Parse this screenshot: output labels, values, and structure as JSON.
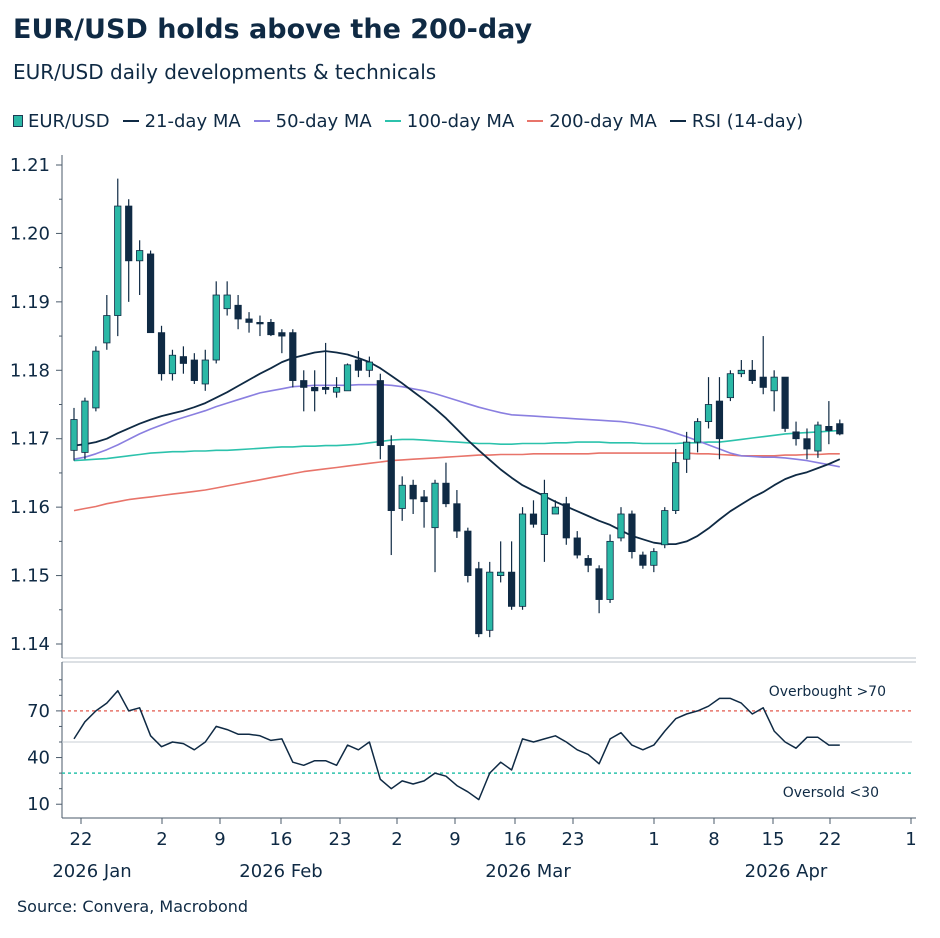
{
  "title": "EUR/USD holds above the 200-day",
  "subtitle": "EUR/USD daily developments & technicals",
  "source": "Source: Convera, Macrobond",
  "legend": [
    {
      "label": "EUR/USD",
      "kind": "candle",
      "color": "#2bb8a6"
    },
    {
      "label": "21-day MA",
      "kind": "line",
      "color": "#0f2a44"
    },
    {
      "label": "50-day MA",
      "kind": "line",
      "color": "#8a7fe0"
    },
    {
      "label": "100-day MA",
      "kind": "line",
      "color": "#2cc2ac"
    },
    {
      "label": "200-day MA",
      "kind": "line",
      "color": "#e8746a"
    },
    {
      "label": "RSI (14-day)",
      "kind": "line",
      "color": "#0f2a44"
    }
  ],
  "chart_data": {
    "type": "candlestick",
    "x_ticks": [
      "22",
      "2",
      "9",
      "16",
      "23",
      "2",
      "9",
      "16",
      "23",
      "1",
      "8",
      "15",
      "22",
      "1"
    ],
    "x_month_labels": [
      "2026 Jan",
      "2026 Feb",
      "2026 Mar",
      "2026 Apr"
    ],
    "price_axis": {
      "ticks": [
        "1.21",
        "1.20",
        "1.19",
        "1.18",
        "1.17",
        "1.16",
        "1.15",
        "1.14"
      ],
      "ylim": [
        1.14,
        1.21
      ]
    },
    "rsi_axis": {
      "ticks": [
        "70",
        "40",
        "10"
      ],
      "ylim": [
        5,
        95
      ]
    },
    "rsi_reference": {
      "overbought": 70,
      "oversold": 30,
      "overbought_label": "Overbought >70",
      "oversold_label": "Oversold <30"
    },
    "candles": [
      {
        "o": 1.1683,
        "h": 1.1745,
        "l": 1.1668,
        "c": 1.1728
      },
      {
        "o": 1.168,
        "h": 1.176,
        "l": 1.167,
        "c": 1.1755
      },
      {
        "o": 1.1745,
        "h": 1.1835,
        "l": 1.174,
        "c": 1.1828
      },
      {
        "o": 1.184,
        "h": 1.191,
        "l": 1.183,
        "c": 1.188
      },
      {
        "o": 1.188,
        "h": 1.208,
        "l": 1.185,
        "c": 1.204
      },
      {
        "o": 1.204,
        "h": 1.205,
        "l": 1.19,
        "c": 1.196
      },
      {
        "o": 1.196,
        "h": 1.199,
        "l": 1.191,
        "c": 1.1975
      },
      {
        "o": 1.197,
        "h": 1.1975,
        "l": 1.1855,
        "c": 1.1855
      },
      {
        "o": 1.1855,
        "h": 1.1865,
        "l": 1.1785,
        "c": 1.1795
      },
      {
        "o": 1.1795,
        "h": 1.183,
        "l": 1.1785,
        "c": 1.1822
      },
      {
        "o": 1.182,
        "h": 1.1835,
        "l": 1.1795,
        "c": 1.181
      },
      {
        "o": 1.1815,
        "h": 1.1825,
        "l": 1.178,
        "c": 1.1785
      },
      {
        "o": 1.178,
        "h": 1.183,
        "l": 1.177,
        "c": 1.1815
      },
      {
        "o": 1.1815,
        "h": 1.193,
        "l": 1.181,
        "c": 1.191
      },
      {
        "o": 1.189,
        "h": 1.193,
        "l": 1.188,
        "c": 1.191
      },
      {
        "o": 1.1895,
        "h": 1.191,
        "l": 1.186,
        "c": 1.1875
      },
      {
        "o": 1.1875,
        "h": 1.1885,
        "l": 1.1855,
        "c": 1.187
      },
      {
        "o": 1.187,
        "h": 1.188,
        "l": 1.185,
        "c": 1.1868
      },
      {
        "o": 1.187,
        "h": 1.1875,
        "l": 1.185,
        "c": 1.1852
      },
      {
        "o": 1.1855,
        "h": 1.186,
        "l": 1.1825,
        "c": 1.185
      },
      {
        "o": 1.1855,
        "h": 1.186,
        "l": 1.1775,
        "c": 1.1785
      },
      {
        "o": 1.1785,
        "h": 1.18,
        "l": 1.174,
        "c": 1.1775
      },
      {
        "o": 1.1775,
        "h": 1.18,
        "l": 1.174,
        "c": 1.177
      },
      {
        "o": 1.1775,
        "h": 1.184,
        "l": 1.1765,
        "c": 1.1772
      },
      {
        "o": 1.1768,
        "h": 1.179,
        "l": 1.176,
        "c": 1.1775
      },
      {
        "o": 1.177,
        "h": 1.181,
        "l": 1.177,
        "c": 1.1808
      },
      {
        "o": 1.1815,
        "h": 1.1828,
        "l": 1.179,
        "c": 1.18
      },
      {
        "o": 1.18,
        "h": 1.182,
        "l": 1.179,
        "c": 1.1812
      },
      {
        "o": 1.1785,
        "h": 1.1795,
        "l": 1.167,
        "c": 1.169
      },
      {
        "o": 1.169,
        "h": 1.1705,
        "l": 1.153,
        "c": 1.1595
      },
      {
        "o": 1.1598,
        "h": 1.1645,
        "l": 1.158,
        "c": 1.1632
      },
      {
        "o": 1.1632,
        "h": 1.164,
        "l": 1.159,
        "c": 1.1612
      },
      {
        "o": 1.1615,
        "h": 1.1625,
        "l": 1.157,
        "c": 1.1608
      },
      {
        "o": 1.157,
        "h": 1.164,
        "l": 1.1505,
        "c": 1.1635
      },
      {
        "o": 1.1635,
        "h": 1.1665,
        "l": 1.16,
        "c": 1.1605
      },
      {
        "o": 1.1605,
        "h": 1.1625,
        "l": 1.1555,
        "c": 1.1565
      },
      {
        "o": 1.1565,
        "h": 1.157,
        "l": 1.149,
        "c": 1.15
      },
      {
        "o": 1.151,
        "h": 1.152,
        "l": 1.141,
        "c": 1.1415
      },
      {
        "o": 1.142,
        "h": 1.152,
        "l": 1.141,
        "c": 1.1505
      },
      {
        "o": 1.15,
        "h": 1.155,
        "l": 1.149,
        "c": 1.1505
      },
      {
        "o": 1.1505,
        "h": 1.155,
        "l": 1.145,
        "c": 1.1455
      },
      {
        "o": 1.1455,
        "h": 1.16,
        "l": 1.145,
        "c": 1.159
      },
      {
        "o": 1.159,
        "h": 1.161,
        "l": 1.157,
        "c": 1.1575
      },
      {
        "o": 1.156,
        "h": 1.164,
        "l": 1.152,
        "c": 1.162
      },
      {
        "o": 1.159,
        "h": 1.161,
        "l": 1.159,
        "c": 1.16
      },
      {
        "o": 1.1605,
        "h": 1.1615,
        "l": 1.1545,
        "c": 1.1555
      },
      {
        "o": 1.1555,
        "h": 1.1565,
        "l": 1.1525,
        "c": 1.153
      },
      {
        "o": 1.1525,
        "h": 1.153,
        "l": 1.1505,
        "c": 1.1515
      },
      {
        "o": 1.151,
        "h": 1.1515,
        "l": 1.1445,
        "c": 1.1465
      },
      {
        "o": 1.1465,
        "h": 1.156,
        "l": 1.146,
        "c": 1.155
      },
      {
        "o": 1.1555,
        "h": 1.16,
        "l": 1.155,
        "c": 1.159
      },
      {
        "o": 1.159,
        "h": 1.1595,
        "l": 1.1525,
        "c": 1.1535
      },
      {
        "o": 1.153,
        "h": 1.1535,
        "l": 1.151,
        "c": 1.1515
      },
      {
        "o": 1.1515,
        "h": 1.154,
        "l": 1.1505,
        "c": 1.1535
      },
      {
        "o": 1.1545,
        "h": 1.16,
        "l": 1.154,
        "c": 1.1595
      },
      {
        "o": 1.1595,
        "h": 1.1685,
        "l": 1.159,
        "c": 1.1665
      },
      {
        "o": 1.167,
        "h": 1.171,
        "l": 1.165,
        "c": 1.1695
      },
      {
        "o": 1.1695,
        "h": 1.173,
        "l": 1.168,
        "c": 1.1725
      },
      {
        "o": 1.1725,
        "h": 1.179,
        "l": 1.1715,
        "c": 1.175
      },
      {
        "o": 1.1755,
        "h": 1.179,
        "l": 1.167,
        "c": 1.17
      },
      {
        "o": 1.176,
        "h": 1.18,
        "l": 1.1755,
        "c": 1.1795
      },
      {
        "o": 1.1795,
        "h": 1.1815,
        "l": 1.179,
        "c": 1.18
      },
      {
        "o": 1.18,
        "h": 1.1815,
        "l": 1.178,
        "c": 1.1785
      },
      {
        "o": 1.179,
        "h": 1.185,
        "l": 1.1765,
        "c": 1.1775
      },
      {
        "o": 1.177,
        "h": 1.18,
        "l": 1.174,
        "c": 1.179
      },
      {
        "o": 1.179,
        "h": 1.179,
        "l": 1.171,
        "c": 1.1715
      },
      {
        "o": 1.171,
        "h": 1.1725,
        "l": 1.169,
        "c": 1.17
      },
      {
        "o": 1.17,
        "h": 1.1715,
        "l": 1.167,
        "c": 1.1685
      },
      {
        "o": 1.1682,
        "h": 1.1725,
        "l": 1.1672,
        "c": 1.172
      },
      {
        "o": 1.1718,
        "h": 1.1755,
        "l": 1.1692,
        "c": 1.1712
      },
      {
        "o": 1.1722,
        "h": 1.1728,
        "l": 1.1705,
        "c": 1.1707
      }
    ],
    "ma21": [
      1.169,
      1.1692,
      1.1695,
      1.17,
      1.1708,
      1.1715,
      1.1722,
      1.1728,
      1.1733,
      1.1737,
      1.1741,
      1.1746,
      1.1752,
      1.176,
      1.1768,
      1.1777,
      1.1786,
      1.1795,
      1.1803,
      1.1812,
      1.1818,
      1.1822,
      1.1826,
      1.1828,
      1.1826,
      1.1823,
      1.1818,
      1.1812,
      1.1803,
      1.1792,
      1.1781,
      1.1769,
      1.1757,
      1.1744,
      1.173,
      1.1714,
      1.1698,
      1.1683,
      1.1669,
      1.1655,
      1.1643,
      1.1632,
      1.1624,
      1.1616,
      1.1608,
      1.1601,
      1.1594,
      1.1587,
      1.158,
      1.1574,
      1.1566,
      1.1558,
      1.1553,
      1.1548,
      1.1546,
      1.1546,
      1.155,
      1.1558,
      1.1569,
      1.1582,
      1.1594,
      1.1604,
      1.1614,
      1.1622,
      1.1632,
      1.1641,
      1.1647,
      1.1651,
      1.1657,
      1.1663,
      1.167
    ],
    "ma50": [
      1.167,
      1.1673,
      1.1678,
      1.1684,
      1.1691,
      1.1699,
      1.1707,
      1.1714,
      1.172,
      1.1726,
      1.1731,
      1.1736,
      1.1741,
      1.1747,
      1.1752,
      1.1757,
      1.1762,
      1.1767,
      1.177,
      1.1773,
      1.1776,
      1.1777,
      1.1778,
      1.1778,
      1.1778,
      1.1778,
      1.1779,
      1.1779,
      1.1779,
      1.1778,
      1.1776,
      1.1773,
      1.177,
      1.1766,
      1.1761,
      1.1756,
      1.1751,
      1.1746,
      1.1742,
      1.1738,
      1.1735,
      1.1734,
      1.1733,
      1.1732,
      1.1731,
      1.173,
      1.1729,
      1.1728,
      1.1727,
      1.1726,
      1.1725,
      1.1723,
      1.172,
      1.1717,
      1.1713,
      1.1708,
      1.1703,
      1.1697,
      1.1691,
      1.1685,
      1.1679,
      1.1675,
      1.1674,
      1.1673,
      1.1673,
      1.1672,
      1.167,
      1.1668,
      1.1665,
      1.1662,
      1.1659
    ],
    "ma100": [
      1.1668,
      1.1669,
      1.167,
      1.1671,
      1.1673,
      1.1675,
      1.1677,
      1.1679,
      1.168,
      1.1681,
      1.1681,
      1.1682,
      1.1682,
      1.1683,
      1.1683,
      1.1684,
      1.1685,
      1.1686,
      1.1687,
      1.1688,
      1.1688,
      1.1689,
      1.1689,
      1.169,
      1.169,
      1.1691,
      1.1692,
      1.1694,
      1.1696,
      1.1698,
      1.1699,
      1.1699,
      1.1698,
      1.1697,
      1.1696,
      1.1695,
      1.1694,
      1.1693,
      1.1693,
      1.1692,
      1.1692,
      1.1693,
      1.1693,
      1.1693,
      1.1694,
      1.1694,
      1.1695,
      1.1695,
      1.1695,
      1.1694,
      1.1694,
      1.1694,
      1.1693,
      1.1693,
      1.1693,
      1.1693,
      1.1694,
      1.1694,
      1.1695,
      1.1695,
      1.1697,
      1.1699,
      1.1701,
      1.1703,
      1.1705,
      1.1707,
      1.1708,
      1.1709,
      1.171,
      1.1711,
      1.1712
    ],
    "ma200": [
      1.1595,
      1.1598,
      1.1601,
      1.1605,
      1.1608,
      1.1611,
      1.1613,
      1.1615,
      1.1617,
      1.1619,
      1.1621,
      1.1623,
      1.1625,
      1.1628,
      1.1631,
      1.1634,
      1.1637,
      1.164,
      1.1643,
      1.1646,
      1.1649,
      1.1652,
      1.1654,
      1.1656,
      1.1658,
      1.166,
      1.1662,
      1.1664,
      1.1666,
      1.1668,
      1.1669,
      1.167,
      1.1671,
      1.1672,
      1.1673,
      1.1674,
      1.1675,
      1.1676,
      1.1676,
      1.1677,
      1.1677,
      1.1677,
      1.1678,
      1.1678,
      1.1678,
      1.1678,
      1.1678,
      1.1678,
      1.1679,
      1.1679,
      1.1679,
      1.1679,
      1.1679,
      1.1679,
      1.1679,
      1.1679,
      1.1679,
      1.1678,
      1.1678,
      1.1677,
      1.1676,
      1.1675,
      1.1675,
      1.1675,
      1.1675,
      1.1676,
      1.1676,
      1.1677,
      1.1677,
      1.1678,
      1.1678
    ],
    "rsi": [
      52,
      63,
      70,
      75,
      83,
      70,
      72,
      54,
      47,
      50,
      49,
      45,
      50,
      60,
      58,
      55,
      55,
      54,
      51,
      52,
      37,
      35,
      38,
      38,
      35,
      48,
      45,
      50,
      26,
      20,
      25,
      23,
      25,
      30,
      28,
      22,
      18,
      13,
      30,
      37,
      32,
      52,
      50,
      52,
      54,
      50,
      45,
      42,
      36,
      52,
      56,
      48,
      45,
      48,
      57,
      65,
      68,
      70,
      73,
      78,
      78,
      75,
      68,
      72,
      57,
      50,
      46,
      53,
      53,
      48,
      48
    ]
  }
}
